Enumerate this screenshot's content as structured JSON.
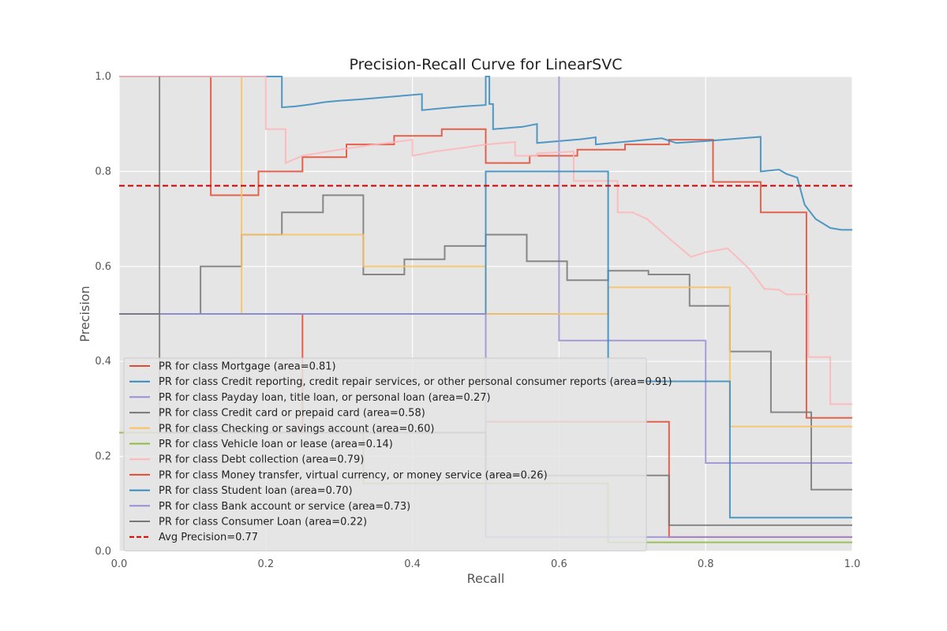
{
  "chart_data": {
    "type": "line",
    "title": "Precision-Recall Curve for LinearSVC",
    "xlabel": "Recall",
    "ylabel": "Precision",
    "xlim": [
      0.0,
      1.0
    ],
    "ylim": [
      0.0,
      1.0
    ],
    "xticks": [
      "0.0",
      "0.2",
      "0.4",
      "0.6",
      "0.8",
      "1.0"
    ],
    "yticks": [
      "0.0",
      "0.2",
      "0.4",
      "0.6",
      "0.8",
      "1.0"
    ],
    "grid": true,
    "background": "#e5e5e5",
    "legend_position": "lower-left",
    "series": [
      {
        "name": "PR for class Mortgage (area=0.81)",
        "color": "#e24a33",
        "step": true,
        "points": [
          [
            0,
            1
          ],
          [
            0.125,
            1
          ],
          [
            0.125,
            0.75
          ],
          [
            0.19,
            0.75
          ],
          [
            0.19,
            0.8
          ],
          [
            0.25,
            0.8
          ],
          [
            0.25,
            0.83
          ],
          [
            0.31,
            0.83
          ],
          [
            0.31,
            0.857
          ],
          [
            0.375,
            0.857
          ],
          [
            0.375,
            0.875
          ],
          [
            0.44,
            0.875
          ],
          [
            0.44,
            0.889
          ],
          [
            0.5,
            0.889
          ],
          [
            0.5,
            0.818
          ],
          [
            0.56,
            0.818
          ],
          [
            0.56,
            0.833
          ],
          [
            0.625,
            0.833
          ],
          [
            0.625,
            0.846
          ],
          [
            0.69,
            0.846
          ],
          [
            0.69,
            0.857
          ],
          [
            0.75,
            0.857
          ],
          [
            0.75,
            0.867
          ],
          [
            0.81,
            0.867
          ],
          [
            0.81,
            0.778
          ],
          [
            0.875,
            0.778
          ],
          [
            0.875,
            0.714
          ],
          [
            0.9375,
            0.714
          ],
          [
            0.9375,
            0.281
          ],
          [
            1.0,
            0.281
          ]
        ]
      },
      {
        "name": "PR for class Credit reporting, credit repair services, or other personal consumer reports (area=0.91)",
        "color": "#348abd",
        "step": true,
        "points": [
          [
            0,
            1
          ],
          [
            0.222,
            1
          ],
          [
            0.222,
            0.935
          ],
          [
            0.24,
            0.937
          ],
          [
            0.26,
            0.941
          ],
          [
            0.28,
            0.946
          ],
          [
            0.3,
            0.949
          ],
          [
            0.33,
            0.952
          ],
          [
            0.36,
            0.956
          ],
          [
            0.39,
            0.96
          ],
          [
            0.413,
            0.963
          ],
          [
            0.413,
            0.929
          ],
          [
            0.44,
            0.933
          ],
          [
            0.47,
            0.937
          ],
          [
            0.5,
            0.94
          ],
          [
            0.5,
            1.0
          ],
          [
            0.505,
            1.0
          ],
          [
            0.505,
            0.942
          ],
          [
            0.51,
            0.942
          ],
          [
            0.51,
            0.889
          ],
          [
            0.55,
            0.894
          ],
          [
            0.57,
            0.9
          ],
          [
            0.57,
            0.86
          ],
          [
            0.6,
            0.864
          ],
          [
            0.63,
            0.868
          ],
          [
            0.65,
            0.872
          ],
          [
            0.65,
            0.857
          ],
          [
            0.7,
            0.864
          ],
          [
            0.74,
            0.87
          ],
          [
            0.76,
            0.86
          ],
          [
            0.8,
            0.864
          ],
          [
            0.85,
            0.87
          ],
          [
            0.875,
            0.873
          ],
          [
            0.875,
            0.8
          ],
          [
            0.9,
            0.804
          ],
          [
            0.91,
            0.795
          ],
          [
            0.925,
            0.787
          ],
          [
            0.935,
            0.73
          ],
          [
            0.95,
            0.7
          ],
          [
            0.97,
            0.681
          ],
          [
            0.985,
            0.677
          ],
          [
            1.0,
            0.677
          ]
        ]
      },
      {
        "name": "PR for class Payday loan, title loan, or personal loan (area=0.27)",
        "color": "#988ed5",
        "step": true,
        "points": [
          [
            0,
            0.5
          ],
          [
            0.6,
            0.5
          ],
          [
            0.6,
            1.0
          ],
          [
            0.6,
            0.444
          ],
          [
            0.8,
            0.444
          ],
          [
            0.8,
            0.186
          ],
          [
            1.0,
            0.186
          ]
        ]
      },
      {
        "name": "PR for class Credit card or prepaid card (area=0.58)",
        "color": "#777777",
        "step": true,
        "points": [
          [
            0,
            0.5
          ],
          [
            0.111,
            0.5
          ],
          [
            0.111,
            0.6
          ],
          [
            0.139,
            0.6
          ],
          [
            0.167,
            0.6
          ],
          [
            0.167,
            0.667
          ],
          [
            0.222,
            0.667
          ],
          [
            0.222,
            0.714
          ],
          [
            0.278,
            0.714
          ],
          [
            0.278,
            0.75
          ],
          [
            0.333,
            0.75
          ],
          [
            0.333,
            0.583
          ],
          [
            0.389,
            0.583
          ],
          [
            0.389,
            0.615
          ],
          [
            0.444,
            0.615
          ],
          [
            0.444,
            0.643
          ],
          [
            0.5,
            0.643
          ],
          [
            0.5,
            0.667
          ],
          [
            0.556,
            0.667
          ],
          [
            0.556,
            0.611
          ],
          [
            0.611,
            0.611
          ],
          [
            0.611,
            0.571
          ],
          [
            0.667,
            0.571
          ],
          [
            0.667,
            0.591
          ],
          [
            0.722,
            0.591
          ],
          [
            0.722,
            0.583
          ],
          [
            0.778,
            0.583
          ],
          [
            0.778,
            0.517
          ],
          [
            0.833,
            0.517
          ],
          [
            0.833,
            0.421
          ],
          [
            0.889,
            0.421
          ],
          [
            0.889,
            0.293
          ],
          [
            0.944,
            0.293
          ],
          [
            0.944,
            0.13
          ],
          [
            1.0,
            0.13
          ]
        ]
      },
      {
        "name": "PR for class Checking or savings account (area=0.60)",
        "color": "#fbc15e",
        "step": true,
        "points": [
          [
            0,
            0.5
          ],
          [
            0.167,
            0.5
          ],
          [
            0.167,
            1.0
          ],
          [
            0.167,
            0.667
          ],
          [
            0.333,
            0.667
          ],
          [
            0.333,
            0.6
          ],
          [
            0.5,
            0.6
          ],
          [
            0.5,
            0.5
          ],
          [
            0.667,
            0.5
          ],
          [
            0.667,
            0.556
          ],
          [
            0.833,
            0.556
          ],
          [
            0.833,
            0.263
          ],
          [
            1.0,
            0.263
          ]
        ]
      },
      {
        "name": "PR for class Vehicle loan or lease (area=0.14)",
        "color": "#8eba42",
        "step": true,
        "points": [
          [
            0,
            0.25
          ],
          [
            0.333,
            0.25
          ],
          [
            0.333,
            0.143
          ],
          [
            0.667,
            0.143
          ],
          [
            0.667,
            0.019
          ],
          [
            1.0,
            0.019
          ]
        ]
      },
      {
        "name": "PR for class Debt collection (area=0.79)",
        "color": "#ffb5b8",
        "step": true,
        "points": [
          [
            0,
            1
          ],
          [
            0.2,
            1
          ],
          [
            0.2,
            0.889
          ],
          [
            0.227,
            0.889
          ],
          [
            0.227,
            0.818
          ],
          [
            0.25,
            0.833
          ],
          [
            0.3,
            0.846
          ],
          [
            0.35,
            0.857
          ],
          [
            0.4,
            0.867
          ],
          [
            0.4,
            0.833
          ],
          [
            0.43,
            0.842
          ],
          [
            0.47,
            0.85
          ],
          [
            0.5,
            0.857
          ],
          [
            0.54,
            0.862
          ],
          [
            0.54,
            0.833
          ],
          [
            0.57,
            0.833
          ],
          [
            0.57,
            0.838
          ],
          [
            0.62,
            0.842
          ],
          [
            0.62,
            0.78
          ],
          [
            0.68,
            0.78
          ],
          [
            0.68,
            0.714
          ],
          [
            0.7,
            0.714
          ],
          [
            0.72,
            0.7
          ],
          [
            0.75,
            0.659
          ],
          [
            0.78,
            0.62
          ],
          [
            0.8,
            0.63
          ],
          [
            0.83,
            0.638
          ],
          [
            0.86,
            0.594
          ],
          [
            0.88,
            0.553
          ],
          [
            0.9,
            0.551
          ],
          [
            0.91,
            0.541
          ],
          [
            0.94,
            0.541
          ],
          [
            0.94,
            0.409
          ],
          [
            0.97,
            0.409
          ],
          [
            0.97,
            0.31
          ],
          [
            1.0,
            0.31
          ]
        ]
      },
      {
        "name": "PR for class Money transfer, virtual currency, or money service (area=0.26)",
        "color": "#e24a33",
        "step": true,
        "points": [
          [
            0,
            0.5
          ],
          [
            0.25,
            0.5
          ],
          [
            0.25,
            0.25
          ],
          [
            0.5,
            0.25
          ],
          [
            0.5,
            0.273
          ],
          [
            0.75,
            0.273
          ],
          [
            0.75,
            0.03
          ],
          [
            1.0,
            0.03
          ]
        ]
      },
      {
        "name": "PR for class Student loan (area=0.70)",
        "color": "#348abd",
        "step": true,
        "points": [
          [
            0,
            0.5
          ],
          [
            0.5,
            0.5
          ],
          [
            0.5,
            0.8
          ],
          [
            0.667,
            0.8
          ],
          [
            0.667,
            0.358
          ],
          [
            0.833,
            0.358
          ],
          [
            0.833,
            0.071
          ],
          [
            1.0,
            0.071
          ]
        ]
      },
      {
        "name": "PR for class Bank account or service (area=0.73)",
        "color": "#988ed5",
        "step": true,
        "points": [
          [
            0,
            0.5
          ],
          [
            0.25,
            0.5
          ],
          [
            0.5,
            0.5
          ],
          [
            0.5,
            0.03
          ],
          [
            0.75,
            0.03
          ],
          [
            1.0,
            0.03
          ]
        ]
      },
      {
        "name": "PR for class Consumer Loan (area=0.22)",
        "color": "#777777",
        "step": true,
        "points": [
          [
            0,
            0.5
          ],
          [
            0.055,
            0.5
          ],
          [
            0.055,
            1.0
          ],
          [
            0.055,
            0.25
          ],
          [
            0.5,
            0.25
          ],
          [
            0.5,
            0.16
          ],
          [
            0.75,
            0.16
          ],
          [
            0.75,
            0.055
          ],
          [
            1.0,
            0.055
          ]
        ]
      }
    ],
    "avg_precision": {
      "name": "Avg Precision=0.77",
      "value": 0.77,
      "color": "#cc0000",
      "style": "dashed"
    }
  }
}
